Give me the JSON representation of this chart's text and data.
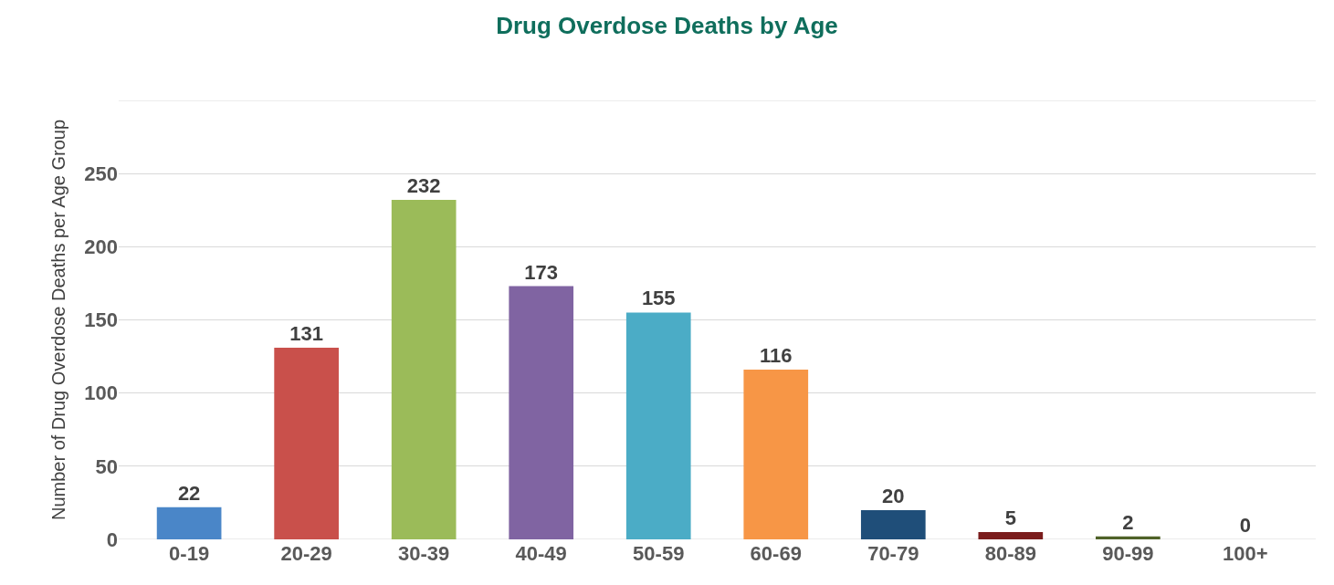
{
  "chart_data": {
    "type": "bar",
    "title": "Drug Overdose Deaths by Age",
    "ylabel": "Number of Drug Overdose Deaths per Age Group",
    "categories": [
      "0-19",
      "20-29",
      "30-39",
      "40-49",
      "50-59",
      "60-69",
      "70-79",
      "80-89",
      "90-99",
      "100+"
    ],
    "values": [
      22,
      131,
      232,
      173,
      155,
      116,
      20,
      5,
      2,
      0
    ],
    "colors": [
      "#4a86c8",
      "#c9504b",
      "#9bbb59",
      "#8064a2",
      "#4bacc6",
      "#f79646",
      "#1f4e79",
      "#7a1c1c",
      "#4f6228",
      "#3f3151"
    ],
    "ylim": [
      0,
      300
    ],
    "yticks": [
      0,
      50,
      100,
      150,
      200,
      250,
      {
        "value": 300,
        "label": null
      }
    ],
    "grid": "y",
    "data_labels": true
  }
}
